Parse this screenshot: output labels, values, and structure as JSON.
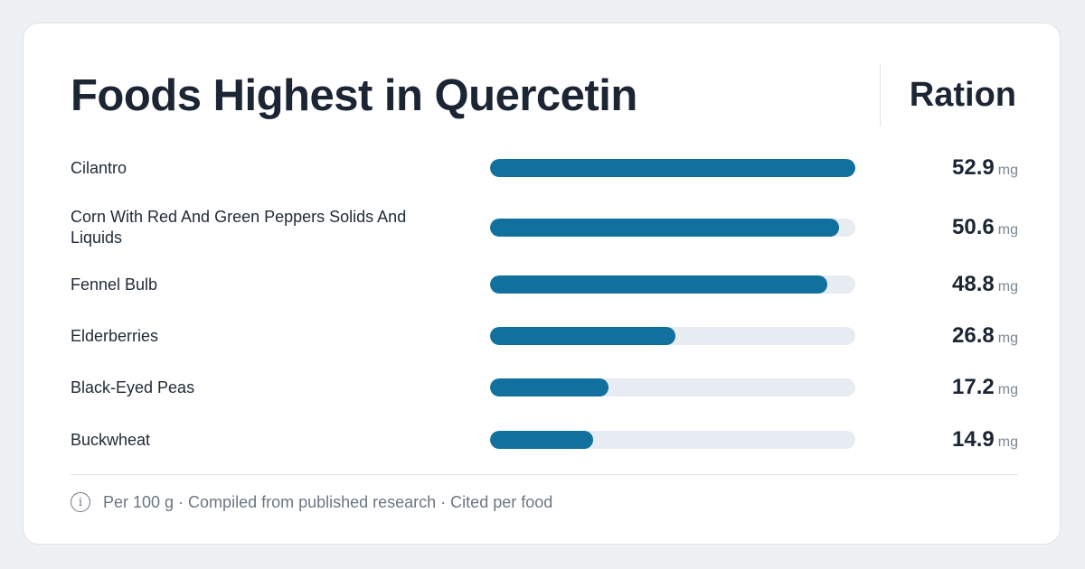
{
  "header": {
    "title": "Foods Highest in Quercetin",
    "brand": "Ration"
  },
  "chart_data": {
    "type": "bar",
    "orientation": "horizontal",
    "title": "Foods Highest in Quercetin",
    "categories": [
      "Cilantro",
      "Corn With Red And Green Peppers Solids And Liquids",
      "Fennel Bulb",
      "Elderberries",
      "Black-Eyed Peas",
      "Buckwheat"
    ],
    "values": [
      52.9,
      50.6,
      48.8,
      26.8,
      17.2,
      14.9
    ],
    "value_labels": [
      "52.9",
      "50.6",
      "48.8",
      "26.8",
      "17.2",
      "14.9"
    ],
    "unit": "mg",
    "xlim": [
      0,
      52.9
    ],
    "bar_color": "#11709e",
    "track_color": "#e6ecf1"
  },
  "footer": {
    "icon": "info-icon",
    "icon_glyph": "i",
    "text": "Per 100 g · Compiled from published research · Cited per food"
  }
}
